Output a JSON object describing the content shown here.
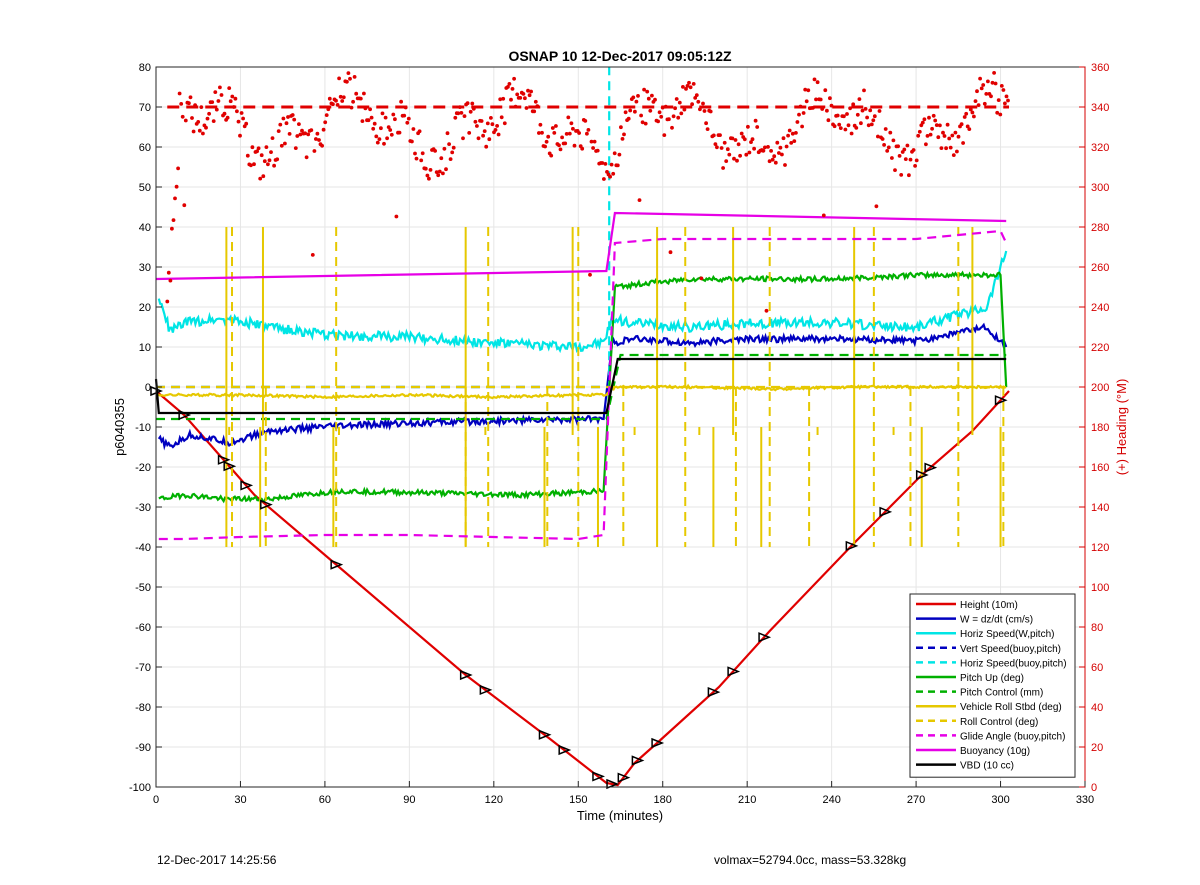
{
  "chart_data": {
    "type": "line",
    "title": "OSNAP 10 12-Dec-2017 09:05:12Z",
    "xlabel": "Time (minutes)",
    "ylabel": "p6040355",
    "y2label": "(+) Heading (°M)",
    "xlim": [
      0,
      330
    ],
    "ylim": [
      -100,
      80
    ],
    "y2lim": [
      0,
      360
    ],
    "xticks": [
      0,
      30,
      60,
      90,
      120,
      150,
      180,
      210,
      240,
      270,
      300,
      330
    ],
    "yticks": [
      -100,
      -90,
      -80,
      -70,
      -60,
      -50,
      -40,
      -30,
      -20,
      -10,
      0,
      10,
      20,
      30,
      40,
      50,
      60,
      70,
      80
    ],
    "y2ticks": [
      0,
      20,
      40,
      60,
      80,
      100,
      120,
      140,
      160,
      180,
      200,
      220,
      240,
      260,
      280,
      300,
      320,
      340,
      360
    ],
    "grid": true,
    "legend_position": "bottom-right",
    "axis_colors": {
      "left": "#000000",
      "right": "#d40000"
    },
    "series": [
      {
        "name": "Height (10m)",
        "color": "#e00000",
        "style": "solid",
        "x": [
          0,
          10,
          25,
          35,
          65,
          110,
          140,
          160,
          164,
          170,
          178,
          200,
          218,
          248,
          272,
          290,
          303
        ],
        "y": [
          -1,
          -7,
          -19,
          -27,
          -45,
          -72,
          -88,
          -99,
          -99.5,
          -94,
          -89,
          -75,
          -61,
          -39,
          -22,
          -11,
          -1
        ]
      },
      {
        "name": "W = dz/dt (cm/s)",
        "color": "#0000c0",
        "style": "solid",
        "x": [
          1,
          5,
          12,
          20,
          26,
          40,
          60,
          90,
          120,
          150,
          159,
          162,
          170,
          190,
          210,
          240,
          270,
          295,
          302
        ],
        "y": [
          -13,
          -15,
          -12,
          -13,
          -14,
          -11,
          -10,
          -9,
          -8.5,
          -8,
          -8,
          11,
          12,
          11,
          12,
          12,
          11.5,
          15,
          10
        ]
      },
      {
        "name": "Horiz Speed(W,pitch)",
        "color": "#00e5e5",
        "style": "solid",
        "x": [
          1,
          5,
          10,
          20,
          26,
          40,
          60,
          90,
          120,
          150,
          159,
          162,
          170,
          190,
          210,
          240,
          270,
          295,
          302
        ],
        "y": [
          22,
          14,
          16,
          17,
          17,
          15,
          13,
          12.5,
          11,
          10,
          11,
          17,
          16,
          15,
          16,
          16,
          15,
          20,
          34
        ]
      },
      {
        "name": "Vert Speed(buoy,pitch)",
        "color": "#0000c0",
        "style": "dashed",
        "x": [
          0,
          161
        ],
        "y": [
          0,
          0
        ]
      },
      {
        "name": "Horiz Speed(buoy,pitch)",
        "color": "#00e5e5",
        "style": "dashed",
        "x": [
          0,
          161,
          161
        ],
        "y": [
          0,
          0,
          80
        ]
      },
      {
        "name": "Pitch Up (deg)",
        "color": "#00b000",
        "style": "solid",
        "x": [
          1,
          10,
          25,
          40,
          65,
          100,
          130,
          159,
          163,
          175,
          190,
          210,
          240,
          270,
          300,
          302
        ],
        "y": [
          -28,
          -27,
          -28,
          -28,
          -26,
          -26.5,
          -27,
          -26,
          25,
          26,
          27,
          27,
          27,
          28,
          28,
          0
        ]
      },
      {
        "name": "Pitch Control (mm)",
        "color": "#00b000",
        "style": "dashed",
        "x": [
          0,
          160,
          165,
          302
        ],
        "y": [
          -8,
          -8,
          8,
          8
        ]
      },
      {
        "name": "Vehicle Roll Stbd (deg)",
        "color": "#e6c800",
        "style": "solid",
        "x": [
          0,
          10,
          30,
          60,
          90,
          120,
          150,
          160,
          163,
          190,
          220,
          250,
          280,
          300,
          302
        ],
        "y": [
          -2,
          -2,
          -2,
          -2.5,
          -2,
          -2.5,
          -2,
          -2,
          0,
          0,
          -0.5,
          0,
          0,
          0,
          0
        ]
      },
      {
        "name": "Roll Control (deg)",
        "color": "#e6c800",
        "style": "dashed",
        "x": [
          0,
          160,
          163,
          302
        ],
        "y": [
          0,
          0,
          0,
          0
        ]
      },
      {
        "name": "Glide Angle (buoy,pitch)",
        "color": "#e600e6",
        "style": "dashed",
        "x": [
          1,
          10,
          30,
          60,
          90,
          120,
          150,
          159,
          163,
          180,
          210,
          240,
          270,
          300,
          302
        ],
        "y": [
          -38,
          -38,
          -37.5,
          -37,
          -37,
          -37.5,
          -38,
          -37,
          36,
          37,
          37,
          37,
          37,
          39,
          36
        ]
      },
      {
        "name": "Buoyancy (10g)",
        "color": "#e600e6",
        "style": "solid",
        "x": [
          0,
          160,
          163,
          302
        ],
        "y": [
          27,
          29,
          43.5,
          41.5
        ]
      },
      {
        "name": "VBD (10 cc)",
        "color": "#000000",
        "style": "solid",
        "x": [
          0,
          1,
          160,
          164,
          302
        ],
        "y": [
          2,
          -6.5,
          -6.5,
          7,
          7
        ]
      }
    ],
    "heading_points": {
      "name": "Heading",
      "color": "#e00000",
      "axis": "right",
      "x_range": [
        4,
        303
      ],
      "y_center": 330,
      "y_reference": 340
    },
    "annotation": {
      "volmax": "volmax=52794.0cc, mass=53.328kg"
    },
    "footer_date": "12-Dec-2017 14:25:56"
  }
}
